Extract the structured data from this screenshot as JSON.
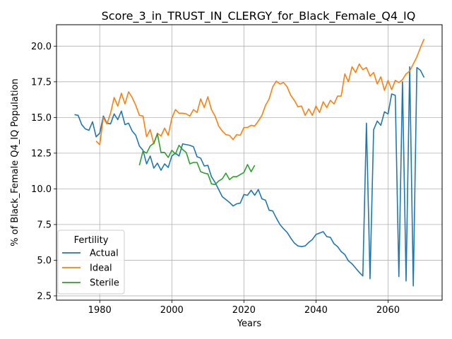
{
  "chart_data": {
    "type": "line",
    "title": "Score_3_in_TRUST_IN_CLERGY_for_Black_Female_Q4_IQ",
    "xlabel": "Years",
    "ylabel": "% of Black_Female Q4_IQ Population",
    "xlim": [
      1968,
      2075
    ],
    "ylim": [
      2.2,
      21.5
    ],
    "xticks": [
      1980,
      2000,
      2020,
      2040,
      2060
    ],
    "yticks": [
      2.5,
      5.0,
      7.5,
      10.0,
      12.5,
      15.0,
      17.5,
      20.0
    ],
    "xtick_labels": [
      "1980",
      "2000",
      "2020",
      "2040",
      "2060"
    ],
    "ytick_labels": [
      "2.5",
      "5.0",
      "7.5",
      "10.0",
      "12.5",
      "15.0",
      "17.5",
      "20.0"
    ],
    "grid": true,
    "legend": {
      "title": "Fertility",
      "position": "lower-left"
    },
    "series": [
      {
        "name": "Actual",
        "color": "#1f77b4",
        "points": [
          [
            1973,
            15.2
          ],
          [
            1974,
            15.15
          ],
          [
            1975,
            14.5
          ],
          [
            1976,
            14.2
          ],
          [
            1977,
            14.1
          ],
          [
            1978,
            14.7
          ],
          [
            1979,
            13.65
          ],
          [
            1980,
            13.9
          ],
          [
            1981,
            15.1
          ],
          [
            1982,
            14.6
          ],
          [
            1983,
            14.55
          ],
          [
            1984,
            15.25
          ],
          [
            1985,
            14.85
          ],
          [
            1986,
            15.45
          ],
          [
            1987,
            14.5
          ],
          [
            1988,
            14.6
          ],
          [
            1989,
            14.05
          ],
          [
            1990,
            13.75
          ],
          [
            1991,
            13.0
          ],
          [
            1992,
            12.7
          ],
          [
            1993,
            11.75
          ],
          [
            1994,
            12.3
          ],
          [
            1995,
            11.45
          ],
          [
            1996,
            11.8
          ],
          [
            1997,
            11.3
          ],
          [
            1998,
            11.75
          ],
          [
            1999,
            11.5
          ],
          [
            2000,
            12.3
          ],
          [
            2001,
            12.5
          ],
          [
            2002,
            12.3
          ],
          [
            2003,
            13.15
          ],
          [
            2004,
            13.1
          ],
          [
            2005,
            13.05
          ],
          [
            2006,
            12.95
          ],
          [
            2007,
            12.25
          ],
          [
            2008,
            12.15
          ],
          [
            2009,
            11.6
          ],
          [
            2010,
            11.65
          ],
          [
            2011,
            10.85
          ],
          [
            2012,
            10.45
          ],
          [
            2013,
            9.95
          ],
          [
            2014,
            9.45
          ],
          [
            2015,
            9.25
          ],
          [
            2016,
            9.05
          ],
          [
            2017,
            8.8
          ],
          [
            2018,
            8.95
          ],
          [
            2019,
            9.0
          ],
          [
            2020,
            9.6
          ],
          [
            2021,
            9.55
          ],
          [
            2022,
            9.9
          ],
          [
            2023,
            9.55
          ],
          [
            2024,
            9.95
          ],
          [
            2025,
            9.3
          ],
          [
            2026,
            9.2
          ],
          [
            2027,
            8.5
          ],
          [
            2028,
            8.45
          ],
          [
            2029,
            7.95
          ],
          [
            2030,
            7.5
          ],
          [
            2031,
            7.2
          ],
          [
            2032,
            6.95
          ],
          [
            2033,
            6.55
          ],
          [
            2034,
            6.2
          ],
          [
            2035,
            6.0
          ],
          [
            2036,
            5.95
          ],
          [
            2037,
            6.0
          ],
          [
            2038,
            6.25
          ],
          [
            2039,
            6.45
          ],
          [
            2040,
            6.8
          ],
          [
            2041,
            6.9
          ],
          [
            2042,
            7.0
          ],
          [
            2043,
            6.65
          ],
          [
            2044,
            6.6
          ],
          [
            2045,
            6.15
          ],
          [
            2046,
            5.95
          ],
          [
            2047,
            5.6
          ],
          [
            2048,
            5.4
          ],
          [
            2049,
            4.95
          ],
          [
            2050,
            4.75
          ],
          [
            2051,
            4.45
          ],
          [
            2052,
            4.15
          ],
          [
            2053,
            3.9
          ],
          [
            2054,
            14.6
          ],
          [
            2055,
            3.7
          ],
          [
            2056,
            14.15
          ],
          [
            2057,
            14.75
          ],
          [
            2058,
            14.45
          ],
          [
            2059,
            15.4
          ],
          [
            2060,
            15.25
          ],
          [
            2061,
            16.65
          ],
          [
            2062,
            16.55
          ],
          [
            2063,
            3.85
          ],
          [
            2064,
            17.5
          ],
          [
            2065,
            3.55
          ],
          [
            2066,
            18.55
          ],
          [
            2067,
            3.2
          ],
          [
            2068,
            18.5
          ],
          [
            2069,
            18.3
          ],
          [
            2070,
            17.8
          ]
        ]
      },
      {
        "name": "Ideal",
        "color": "#ff7f0e",
        "points": [
          [
            1979,
            13.35
          ],
          [
            1980,
            13.1
          ],
          [
            1981,
            15.0
          ],
          [
            1982,
            14.55
          ],
          [
            1983,
            15.3
          ],
          [
            1984,
            16.4
          ],
          [
            1985,
            15.8
          ],
          [
            1986,
            16.7
          ],
          [
            1987,
            15.95
          ],
          [
            1988,
            16.8
          ],
          [
            1989,
            16.4
          ],
          [
            1990,
            15.85
          ],
          [
            1991,
            15.15
          ],
          [
            1992,
            15.1
          ],
          [
            1993,
            13.65
          ],
          [
            1994,
            14.15
          ],
          [
            1995,
            13.15
          ],
          [
            1996,
            13.9
          ],
          [
            1997,
            13.7
          ],
          [
            1998,
            14.25
          ],
          [
            1999,
            13.75
          ],
          [
            2000,
            14.95
          ],
          [
            2001,
            15.55
          ],
          [
            2002,
            15.3
          ],
          [
            2003,
            15.3
          ],
          [
            2004,
            15.25
          ],
          [
            2005,
            15.1
          ],
          [
            2006,
            15.55
          ],
          [
            2007,
            15.35
          ],
          [
            2008,
            16.3
          ],
          [
            2009,
            15.7
          ],
          [
            2010,
            16.45
          ],
          [
            2011,
            15.55
          ],
          [
            2012,
            15.1
          ],
          [
            2013,
            14.4
          ],
          [
            2014,
            14.05
          ],
          [
            2015,
            13.8
          ],
          [
            2016,
            13.75
          ],
          [
            2017,
            13.45
          ],
          [
            2018,
            13.8
          ],
          [
            2019,
            13.75
          ],
          [
            2020,
            14.3
          ],
          [
            2021,
            14.3
          ],
          [
            2022,
            14.45
          ],
          [
            2023,
            14.4
          ],
          [
            2024,
            14.75
          ],
          [
            2025,
            15.15
          ],
          [
            2026,
            15.85
          ],
          [
            2027,
            16.3
          ],
          [
            2028,
            17.15
          ],
          [
            2029,
            17.55
          ],
          [
            2030,
            17.35
          ],
          [
            2031,
            17.45
          ],
          [
            2032,
            17.15
          ],
          [
            2033,
            16.55
          ],
          [
            2034,
            16.2
          ],
          [
            2035,
            15.75
          ],
          [
            2036,
            15.8
          ],
          [
            2037,
            15.15
          ],
          [
            2038,
            15.6
          ],
          [
            2039,
            15.15
          ],
          [
            2040,
            15.8
          ],
          [
            2041,
            15.35
          ],
          [
            2042,
            16.1
          ],
          [
            2043,
            15.7
          ],
          [
            2044,
            16.2
          ],
          [
            2045,
            15.95
          ],
          [
            2046,
            16.5
          ],
          [
            2047,
            16.5
          ],
          [
            2048,
            18.05
          ],
          [
            2049,
            17.5
          ],
          [
            2050,
            18.55
          ],
          [
            2051,
            18.15
          ],
          [
            2052,
            18.75
          ],
          [
            2053,
            18.35
          ],
          [
            2054,
            18.5
          ],
          [
            2055,
            17.9
          ],
          [
            2056,
            18.15
          ],
          [
            2057,
            17.35
          ],
          [
            2058,
            17.85
          ],
          [
            2059,
            16.9
          ],
          [
            2060,
            17.6
          ],
          [
            2061,
            16.95
          ],
          [
            2062,
            17.6
          ],
          [
            2063,
            17.45
          ],
          [
            2064,
            17.65
          ],
          [
            2065,
            18.05
          ],
          [
            2066,
            18.25
          ],
          [
            2067,
            18.75
          ],
          [
            2068,
            19.25
          ],
          [
            2069,
            19.9
          ],
          [
            2070,
            20.5
          ]
        ]
      },
      {
        "name": "Sterile",
        "color": "#2ca02c",
        "points": [
          [
            1991,
            11.65
          ],
          [
            1992,
            12.65
          ],
          [
            1993,
            12.5
          ],
          [
            1994,
            13.0
          ],
          [
            1995,
            13.2
          ],
          [
            1996,
            13.85
          ],
          [
            1997,
            12.55
          ],
          [
            1998,
            12.55
          ],
          [
            1999,
            12.2
          ],
          [
            2000,
            12.7
          ],
          [
            2001,
            12.45
          ],
          [
            2002,
            13.05
          ],
          [
            2003,
            12.75
          ],
          [
            2004,
            12.55
          ],
          [
            2005,
            11.75
          ],
          [
            2006,
            11.85
          ],
          [
            2007,
            11.85
          ],
          [
            2008,
            11.2
          ],
          [
            2009,
            11.1
          ],
          [
            2010,
            11.05
          ],
          [
            2011,
            10.35
          ],
          [
            2012,
            10.3
          ],
          [
            2013,
            10.55
          ],
          [
            2014,
            10.7
          ],
          [
            2015,
            11.1
          ],
          [
            2016,
            10.65
          ],
          [
            2017,
            10.85
          ],
          [
            2018,
            10.85
          ],
          [
            2019,
            11.0
          ],
          [
            2020,
            11.15
          ],
          [
            2021,
            11.7
          ],
          [
            2022,
            11.2
          ],
          [
            2023,
            11.65
          ]
        ]
      }
    ]
  }
}
